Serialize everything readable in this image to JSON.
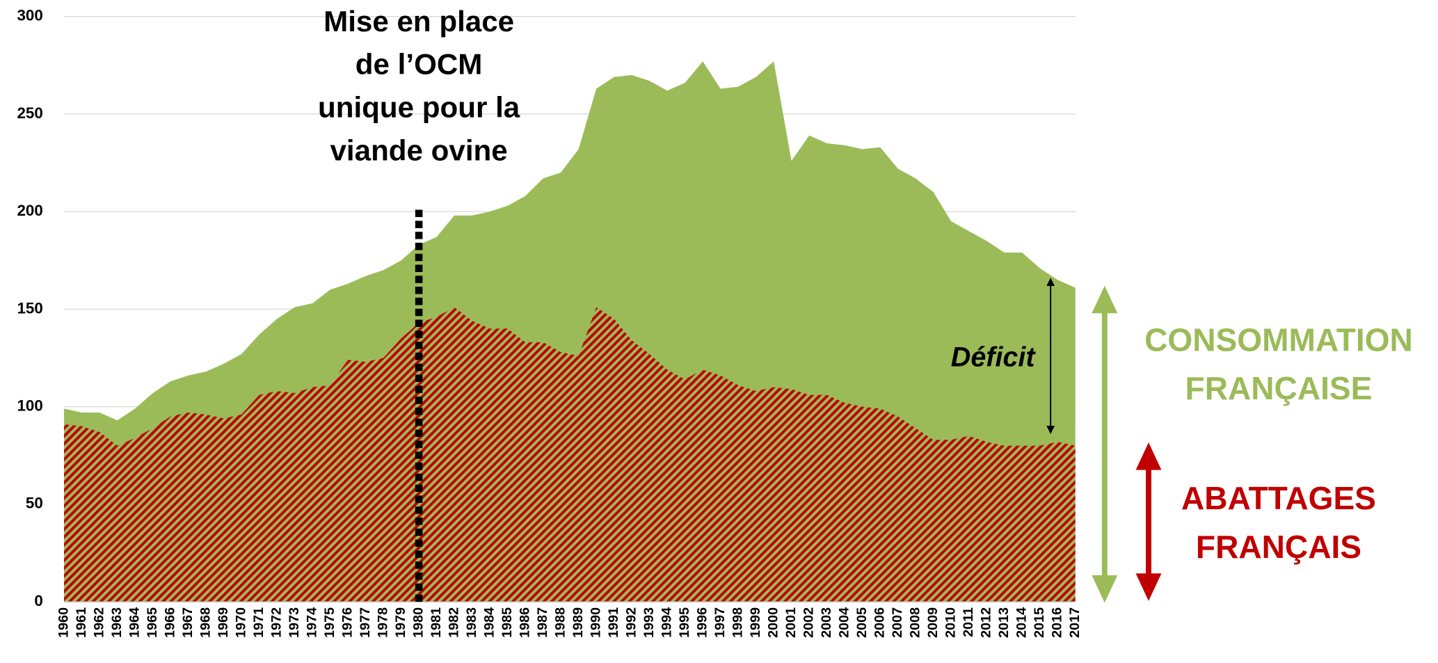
{
  "chart_data": {
    "type": "area",
    "annotation": {
      "text": "Mise en place de l’OCM unique pour la viande ovine",
      "x": 1980
    },
    "deficit_label": "Déficit",
    "categories": [
      "1960",
      "1961",
      "1962",
      "1963",
      "1964",
      "1965",
      "1966",
      "1967",
      "1968",
      "1969",
      "1970",
      "1971",
      "1972",
      "1973",
      "1974",
      "1975",
      "1976",
      "1977",
      "1978",
      "1979",
      "1980",
      "1981",
      "1982",
      "1983",
      "1984",
      "1985",
      "1986",
      "1987",
      "1988",
      "1989",
      "1990",
      "1991",
      "1992",
      "1993",
      "1994",
      "1995",
      "1996",
      "1997",
      "1998",
      "1999",
      "2000",
      "2001",
      "2002",
      "2003",
      "2004",
      "2005",
      "2006",
      "2007",
      "2008",
      "2009",
      "2010",
      "2011",
      "2012",
      "2013",
      "2014",
      "2015",
      "2016",
      "2017"
    ],
    "series": [
      {
        "name": "CONSOMMATION FRANÇAISE",
        "color": "#9bbb59",
        "values": [
          99,
          97,
          97,
          93,
          99,
          107,
          113,
          116,
          118,
          122,
          127,
          137,
          145,
          151,
          153,
          160,
          163,
          167,
          170,
          175,
          183,
          187,
          198,
          198,
          200,
          203,
          208,
          217,
          220,
          232,
          263,
          269,
          270,
          267,
          262,
          266,
          277,
          263,
          264,
          269,
          277,
          226,
          239,
          235,
          234,
          232,
          233,
          222,
          217,
          210,
          195,
          190,
          185,
          179,
          179,
          171,
          165,
          161
        ]
      },
      {
        "name": "ABATTAGES FRANÇAIS",
        "color": "#c00000",
        "values": [
          91,
          90,
          87,
          80,
          84,
          89,
          95,
          97,
          96,
          94,
          96,
          106,
          108,
          107,
          110,
          111,
          124,
          123,
          125,
          135,
          143,
          146,
          151,
          144,
          140,
          140,
          133,
          133,
          128,
          126,
          151,
          145,
          134,
          127,
          119,
          114,
          119,
          116,
          111,
          108,
          110,
          109,
          106,
          106,
          102,
          100,
          99,
          95,
          89,
          83,
          83,
          85,
          82,
          80,
          80,
          80,
          82,
          80
        ]
      }
    ],
    "ylim": [
      0,
      300
    ],
    "yticks": [
      0,
      50,
      100,
      150,
      200,
      250,
      300
    ],
    "grid": true
  }
}
